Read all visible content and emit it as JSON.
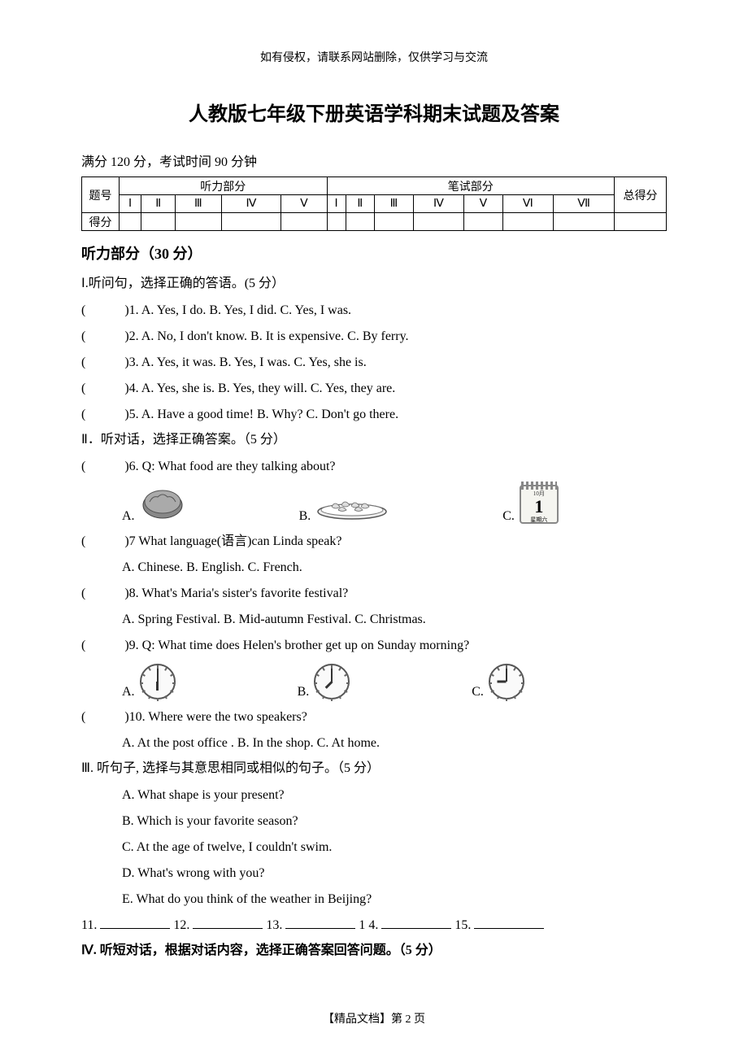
{
  "header_note": "如有侵权，请联系网站删除，仅供学习与交流",
  "title": "人教版七年级下册英语学科期末试题及答案",
  "exam_info": "满分 120 分，考试时间 90 分钟",
  "score_table": {
    "row1_label": "题号",
    "listening_header": "听力部分",
    "writing_header": "笔试部分",
    "total_header": "总得分",
    "listening_cols": [
      "Ⅰ",
      "Ⅱ",
      "Ⅲ",
      "Ⅳ",
      "Ⅴ"
    ],
    "writing_cols": [
      "Ⅰ",
      "Ⅱ",
      "Ⅲ",
      "Ⅳ",
      "Ⅴ",
      "Ⅵ",
      "Ⅶ"
    ],
    "row2_label": "得分"
  },
  "section1": {
    "heading": "听力部分（30 分）",
    "part1_instruction": "Ⅰ.听问句，选择正确的答语。(5 分）",
    "q1": ")1. A. Yes, I do.        B. Yes, I did.        C. Yes, I was.",
    "q2": ")2. A. No, I don't know.      B. It is expensive.      C. By ferry.",
    "q3": ")3. A. Yes, it was.       B. Yes, I was.      C. Yes, she is.",
    "q4": ")4. A. Yes, she is.       B. Yes, they will.      C. Yes, they are.",
    "q5": ")5. A. Have a good time!      B. Why?         C. Don't go there.",
    "part2_instruction": "Ⅱ．听对话，选择正确答案。（5 分）",
    "q6": ")6. Q: What food are they talking about?",
    "q6_opts": {
      "a": "A.",
      "b": "B.",
      "c": "C."
    },
    "calendar": {
      "month": "10月",
      "day": "1",
      "weekday": "星期六"
    },
    "q7": ")7 What language(语言)can Linda speak?",
    "q7_opts": "A. Chinese.                       B. English.                                 C. French.",
    "q8": ")8. What's Maria's sister's favorite festival?",
    "q8_opts": "A. Spring Festival.     B. Mid-autumn Festival.  C. Christmas.",
    "q9": ")9. Q: What time does Helen's brother get up on Sunday morning?",
    "q9_opts": {
      "a": "A.",
      "b": "B.",
      "c": "C."
    },
    "clocks": {
      "a": {
        "hour_deg": 180,
        "min_deg": 0
      },
      "b": {
        "hour_deg": 225,
        "min_deg": 0
      },
      "c": {
        "hour_deg": 270,
        "min_deg": 0
      }
    },
    "q10": ")10. Where were the two speakers?",
    "q10_opts": "A. At the post office .           B. In the shop.                              C. At home.",
    "part3_instruction": "Ⅲ. 听句子, 选择与其意思相同或相似的句子。（5 分）",
    "s3_a": "A. What shape is your present?",
    "s3_b": "B. Which is your favorite season?",
    "s3_c": "C. At the age of twelve, I couldn't swim.",
    "s3_d": "D. What's wrong with you?",
    "s3_e": "E. What do you think of the weather in Beijing?",
    "fill_row": {
      "n11": "11.",
      "n12": "12.",
      "n13": "13.",
      "n14": "1 4.",
      "n15": "15."
    },
    "part4_instruction": "Ⅳ. 听短对话，根据对话内容，选择正确答案回答问题。（5 分）"
  },
  "footer": "【精品文档】第  2  页",
  "colors": {
    "text": "#000000",
    "border": "#000000",
    "bg": "#ffffff"
  }
}
